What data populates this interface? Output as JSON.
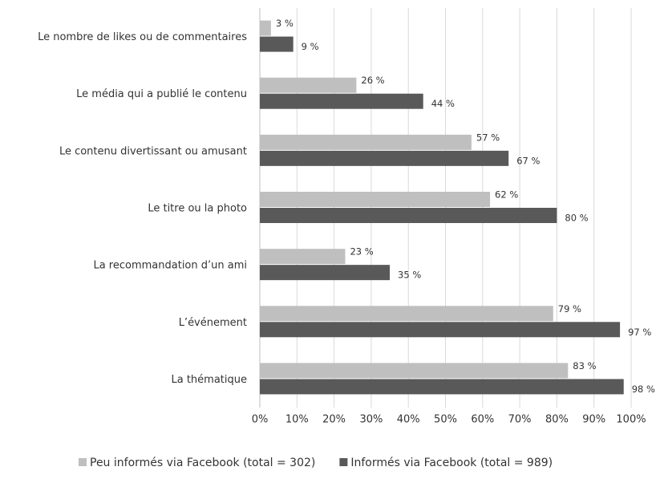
{
  "chart_data": {
    "type": "bar",
    "orientation": "horizontal",
    "categories": [
      "Le nombre de likes ou de commentaires",
      "Le média qui a publié le contenu",
      "Le contenu divertissant ou amusant",
      "Le titre ou la photo",
      "La recommandation d’un ami",
      "L’événement",
      "La thématique"
    ],
    "series": [
      {
        "name": "Peu informés via Facebook (total = 302)",
        "color": "#bfbfbf",
        "values": [
          3,
          26,
          57,
          62,
          23,
          79,
          83
        ],
        "value_labels": [
          "3 %",
          "26 %",
          "57 %",
          "62 %",
          "23 %",
          "79 %",
          "83 %"
        ]
      },
      {
        "name": "Informés via Facebook (total = 989)",
        "color": "#595959",
        "values": [
          9,
          44,
          67,
          80,
          35,
          97,
          98
        ],
        "value_labels": [
          "9 %",
          "44 %",
          "67 %",
          "80 %",
          "35 %",
          "97 %",
          "98 %"
        ]
      }
    ],
    "xlim": [
      0,
      100
    ],
    "xticks": [
      {
        "value": 0,
        "label": "0%"
      },
      {
        "value": 10,
        "label": "10%"
      },
      {
        "value": 20,
        "label": "20%"
      },
      {
        "value": 30,
        "label": "30%"
      },
      {
        "value": 40,
        "label": "40%"
      },
      {
        "value": 50,
        "label": "50%"
      },
      {
        "value": 60,
        "label": "60%"
      },
      {
        "value": 70,
        "label": "70%"
      },
      {
        "value": 80,
        "label": "80%"
      },
      {
        "value": 90,
        "label": "90%"
      },
      {
        "value": 100,
        "label": "100%"
      }
    ],
    "grid": true,
    "legend": "bottom"
  }
}
